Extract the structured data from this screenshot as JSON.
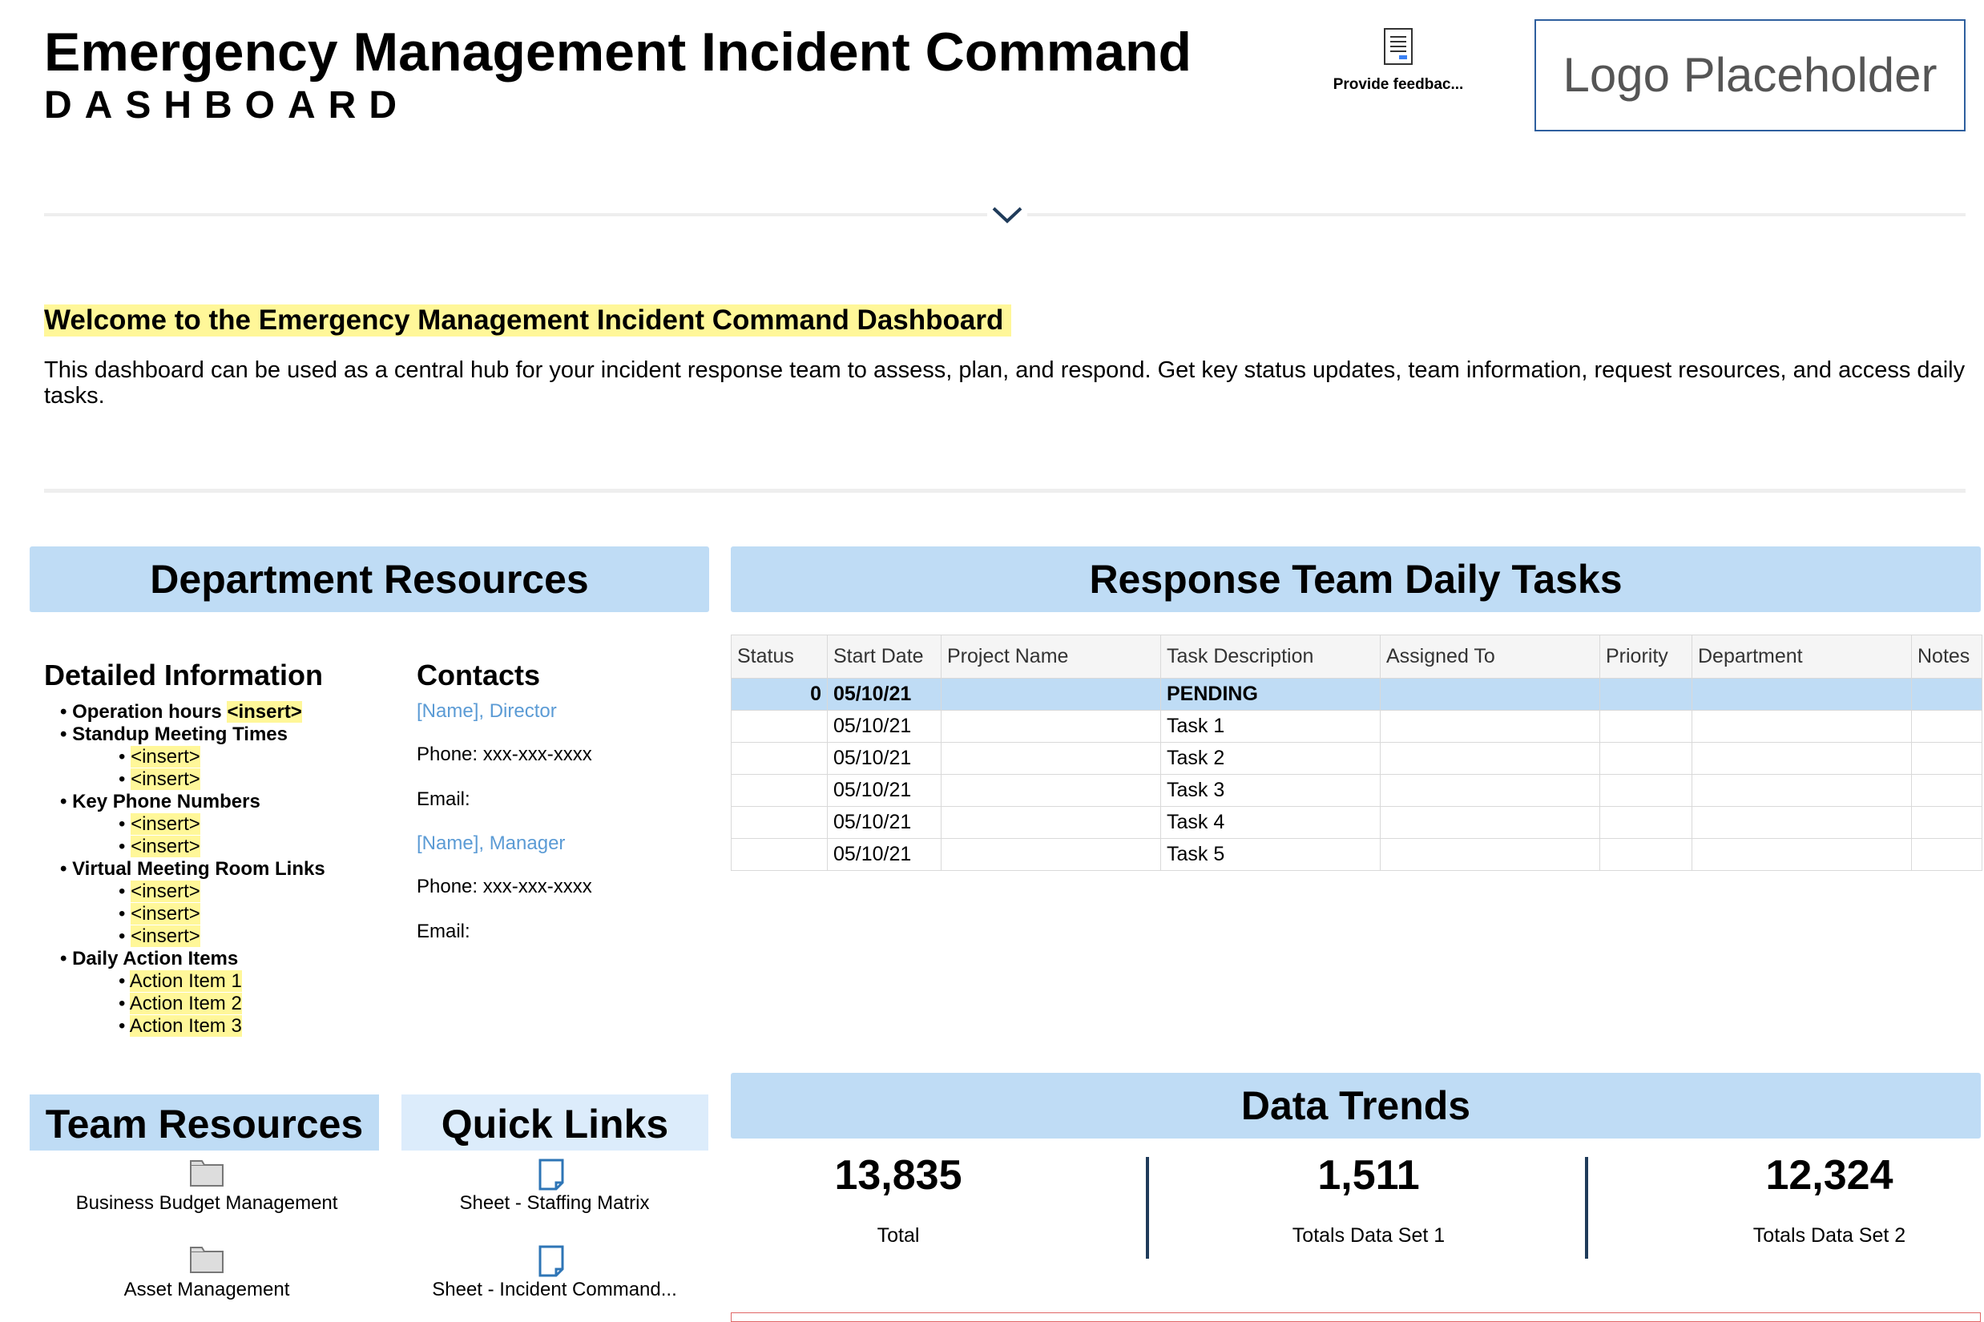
{
  "header": {
    "title": "Emergency Management Incident Command",
    "subtitle": "DASHBOARD",
    "feedback": "Provide feedbac...",
    "logo": "Logo Placeholder"
  },
  "welcome": {
    "heading": "Welcome to the Emergency Management Incident Command Dashboard",
    "body": "This dashboard can be used as a central hub for your incident response team to assess, plan, and respond. Get key status updates, team information, request resources, and access daily tasks."
  },
  "department_resources": {
    "title": "Department Resources",
    "detailed": {
      "heading": "Detailed Information",
      "items": [
        {
          "text": "Operation hours",
          "tag": "<insert>"
        },
        {
          "text": "Standup Meeting Times",
          "children": [
            "<insert>",
            "<insert>"
          ]
        },
        {
          "text": "Key Phone Numbers",
          "children": [
            "<insert>",
            "<insert>"
          ]
        },
        {
          "text": "Virtual Meeting Room Links",
          "children": [
            "<insert>",
            "<insert>",
            "<insert>"
          ]
        },
        {
          "text": "Daily Action Items",
          "children": [
            "Action Item 1",
            "Action Item 2",
            "Action Item 3"
          ]
        }
      ]
    },
    "contacts": {
      "heading": "Contacts",
      "entries": [
        {
          "name": "[Name], Director",
          "phone": "Phone: xxx-xxx-xxxx",
          "email": "Email:"
        },
        {
          "name": "[Name], Manager",
          "phone": "Phone: xxx-xxx-xxxx",
          "email": "Email:"
        }
      ]
    }
  },
  "tasks": {
    "title": "Response Team Daily Tasks",
    "columns": [
      "Status",
      "Start Date",
      "Project Name",
      "Task Description",
      "Assigned To",
      "Priority",
      "Department",
      "Notes"
    ],
    "rows": [
      [
        "0",
        "05/10/21",
        null,
        "PENDING",
        null,
        null,
        null,
        null
      ],
      [
        null,
        "05/10/21",
        null,
        "Task 1",
        null,
        null,
        null,
        null
      ],
      [
        null,
        "05/10/21",
        null,
        "Task 2",
        null,
        null,
        null,
        null
      ],
      [
        null,
        "05/10/21",
        null,
        "Task 3",
        null,
        null,
        null,
        null
      ],
      [
        null,
        "05/10/21",
        null,
        "Task 4",
        null,
        null,
        null,
        null
      ],
      [
        null,
        "05/10/21",
        null,
        "Task 5",
        null,
        null,
        null,
        null
      ]
    ]
  },
  "data_trends": {
    "title": "Data Trends",
    "kpis": [
      {
        "value": "13,835",
        "label": "Total"
      },
      {
        "value": "1,511",
        "label": "Totals Data Set 1"
      },
      {
        "value": "12,324",
        "label": "Totals Data Set 2"
      }
    ]
  },
  "team_resources": {
    "title": "Team Resources",
    "items": [
      "Business Budget Management",
      "Asset Management"
    ]
  },
  "quick_links": {
    "title": "Quick Links",
    "items": [
      "Sheet - Staffing Matrix",
      "Sheet - Incident Command..."
    ]
  }
}
